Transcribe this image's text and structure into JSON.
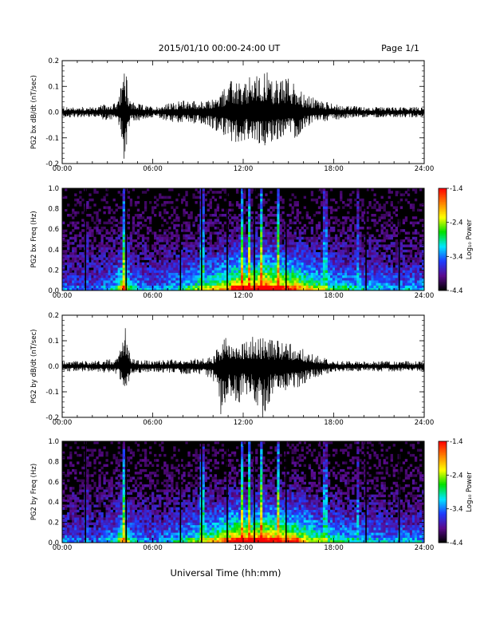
{
  "header": {
    "title": "2015/01/10  00:00-24:00 UT",
    "page": "Page 1/1"
  },
  "footer": {
    "xlabel": "Universal Time (hh:mm)"
  },
  "colors": {
    "trace": "#000000",
    "colormap": [
      "#000000",
      "#5a0a8c",
      "#1e3cff",
      "#00e6ff",
      "#00e000",
      "#ffff00",
      "#ff8000",
      "#ff0000"
    ]
  },
  "chart_data": [
    {
      "type": "line",
      "ylabel": "PG2 bx dB/dt (nT/sec)",
      "xlim": [
        0,
        24
      ],
      "ylim": [
        -0.2,
        0.2
      ],
      "yticks": [
        "0.2",
        "0.1",
        "0.0",
        "-0.1",
        "-0.2"
      ],
      "xticks": [
        "00:00",
        "06:00",
        "12:00",
        "18:00",
        "24:00"
      ],
      "series": [
        {
          "values": {
            "x": [
              0,
              2,
              3.7,
              4.0,
              4.1,
              4.5,
              6,
              7.5,
              8.3,
              9.5,
              10.5,
              11,
              11.3,
              12,
              12.7,
              13,
              13.4,
              14,
              15,
              15.7,
              16,
              17,
              18,
              20,
              22,
              24
            ],
            "y_peak": [
              0.02,
              0.02,
              0.04,
              0.13,
              0.2,
              0.04,
              0.02,
              0.04,
              0.05,
              0.04,
              0.07,
              0.11,
              0.13,
              0.1,
              0.16,
              0.14,
              0.17,
              0.12,
              0.13,
              0.11,
              0.07,
              0.05,
              0.03,
              0.02,
              0.02,
              0.02
            ],
            "y_trough": [
              -0.02,
              -0.02,
              -0.04,
              -0.12,
              -0.19,
              -0.04,
              -0.02,
              -0.04,
              -0.04,
              -0.05,
              -0.08,
              -0.1,
              -0.12,
              -0.11,
              -0.1,
              -0.12,
              -0.13,
              -0.11,
              -0.09,
              -0.11,
              -0.06,
              -0.04,
              -0.03,
              -0.02,
              -0.02,
              -0.02
            ]
          }
        }
      ]
    },
    {
      "type": "heatmap",
      "ylabel": "PG2 bx Freq (Hz)",
      "xlim": [
        0,
        24
      ],
      "ylim": [
        0,
        1.0
      ],
      "yticks": [
        "1.0",
        "0.8",
        "0.6",
        "0.4",
        "0.2",
        "0.0"
      ],
      "xticks": [
        "00:00",
        "06:00",
        "12:00",
        "18:00",
        "24:00"
      ],
      "colorbar": {
        "label": "Log₁₀ Power",
        "ticks": [
          "-1.4",
          "-2.4",
          "-3.4",
          "-4.4"
        ],
        "range": [
          -4.4,
          -1.4
        ]
      },
      "values": {
        "vertical_stripes_hours": [
          1.6,
          4.1,
          9.3,
          11.9,
          12.4,
          13.2,
          14.3,
          17.4,
          19.6
        ],
        "data_gaps_hours": [
          1.5,
          4.2,
          7.8,
          9.2,
          10.9,
          12.7,
          14.8,
          20.1,
          22.3
        ],
        "activity_profile": {
          "x": [
            0,
            2,
            3.5,
            4.1,
            4.6,
            6,
            7.5,
            9,
            10.5,
            11.5,
            12.5,
            13.5,
            14.5,
            15.5,
            16.5,
            18,
            20,
            22,
            24
          ],
          "level": [
            0.2,
            0.15,
            0.3,
            0.75,
            0.3,
            0.2,
            0.3,
            0.45,
            0.6,
            0.8,
            0.85,
            0.95,
            0.8,
            0.75,
            0.55,
            0.4,
            0.3,
            0.25,
            0.25
          ]
        }
      }
    },
    {
      "type": "line",
      "ylabel": "PG2 by dB/dt (nT/sec)",
      "xlim": [
        0,
        24
      ],
      "ylim": [
        -0.2,
        0.2
      ],
      "yticks": [
        "0.2",
        "0.1",
        "0.0",
        "-0.1",
        "-0.2"
      ],
      "xticks": [
        "00:00",
        "06:00",
        "12:00",
        "18:00",
        "24:00"
      ],
      "series": [
        {
          "values": {
            "x": [
              0,
              2,
              3.7,
              4.0,
              4.2,
              4.6,
              6,
              7.5,
              9,
              10,
              10.5,
              11,
              11.7,
              12,
              12.7,
              13.3,
              14,
              15,
              15.7,
              16.5,
              18,
              20,
              22,
              24
            ],
            "y_peak": [
              0.02,
              0.02,
              0.03,
              0.11,
              0.17,
              0.03,
              0.02,
              0.03,
              0.03,
              0.04,
              0.09,
              0.12,
              0.11,
              0.11,
              0.12,
              0.11,
              0.1,
              0.1,
              0.08,
              0.05,
              0.02,
              0.02,
              0.02,
              0.02
            ],
            "y_trough": [
              -0.02,
              -0.02,
              -0.03,
              -0.08,
              -0.1,
              -0.03,
              -0.02,
              -0.03,
              -0.03,
              -0.05,
              -0.19,
              -0.11,
              -0.15,
              -0.1,
              -0.13,
              -0.2,
              -0.1,
              -0.1,
              -0.08,
              -0.05,
              -0.02,
              -0.02,
              -0.02,
              -0.02
            ]
          }
        }
      ]
    },
    {
      "type": "heatmap",
      "ylabel": "PG2 by Freq (Hz)",
      "xlim": [
        0,
        24
      ],
      "ylim": [
        0,
        1.0
      ],
      "yticks": [
        "1.0",
        "0.8",
        "0.6",
        "0.4",
        "0.2",
        "0.0"
      ],
      "xticks": [
        "00:00",
        "06:00",
        "12:00",
        "18:00",
        "24:00"
      ],
      "colorbar": {
        "label": "Log₁₀ Power",
        "ticks": [
          "-1.4",
          "-2.4",
          "-3.4",
          "-4.4"
        ],
        "range": [
          -4.4,
          -1.4
        ]
      },
      "values": {
        "vertical_stripes_hours": [
          1.6,
          4.1,
          9.3,
          11.9,
          12.4,
          13.2,
          14.3,
          17.4,
          19.6
        ],
        "data_gaps_hours": [
          1.5,
          4.2,
          7.8,
          9.2,
          10.9,
          12.7,
          14.8,
          20.1,
          22.3
        ],
        "activity_profile": {
          "x": [
            0,
            2,
            3.5,
            4.1,
            4.6,
            6,
            7.5,
            9,
            10.5,
            11.5,
            12.5,
            13.5,
            14.5,
            15.5,
            16.5,
            18,
            20,
            22,
            24
          ],
          "level": [
            0.2,
            0.15,
            0.3,
            0.7,
            0.3,
            0.2,
            0.3,
            0.45,
            0.65,
            0.85,
            0.85,
            0.9,
            0.8,
            0.75,
            0.55,
            0.4,
            0.3,
            0.25,
            0.25
          ]
        }
      }
    }
  ]
}
